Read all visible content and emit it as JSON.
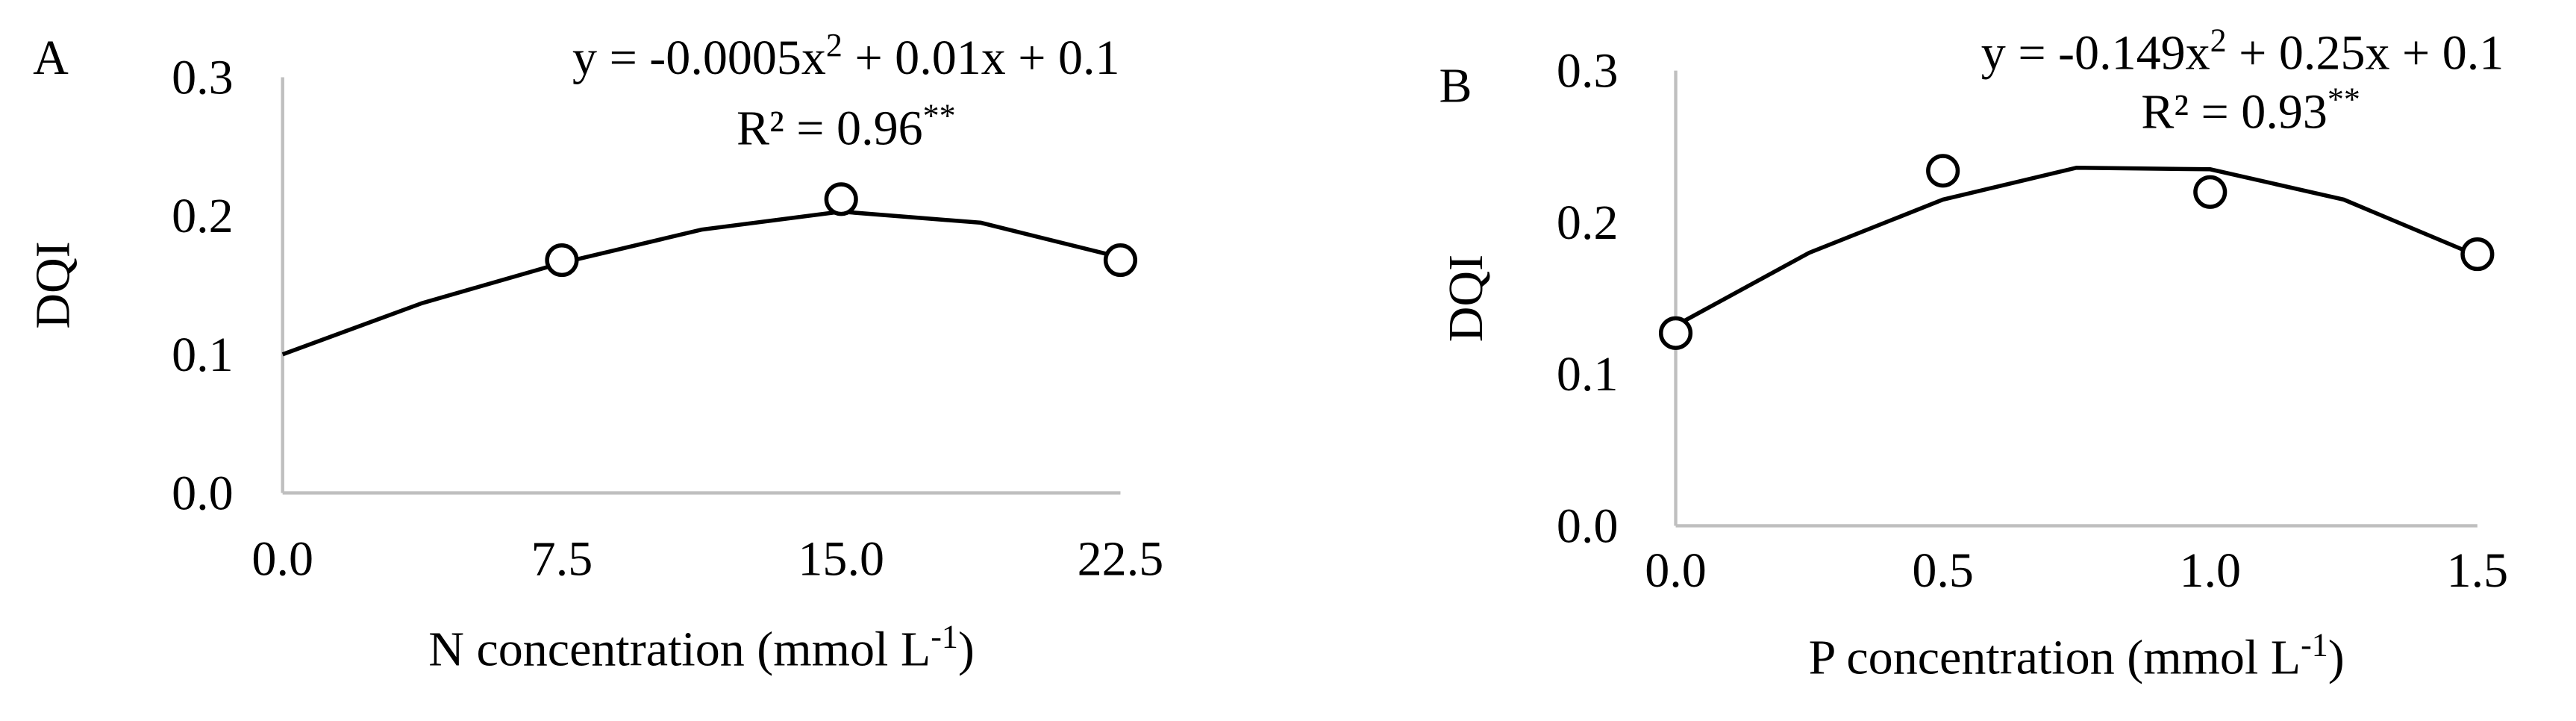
{
  "chart_data": [
    {
      "type": "scatter",
      "panel_label": "A",
      "ylabel": "DQI",
      "xlabel": [
        "N concentration (mmol L",
        "-1",
        ")"
      ],
      "equation": [
        "y = -0.0005x",
        "2",
        " + 0.01x + 0.1"
      ],
      "r2": [
        "R² = 0.96",
        "**"
      ],
      "x": [
        7.5,
        15,
        22.5
      ],
      "values": [
        0.168,
        0.212,
        0.168
      ],
      "color": "#000000",
      "trendline": {
        "x": [
          0,
          3.75,
          7.5,
          11.25,
          15,
          18.75,
          22.5
        ],
        "values": [
          0.1,
          0.137,
          0.166,
          0.19,
          0.203,
          0.195,
          0.17
        ]
      },
      "xlim": [
        0,
        22.5
      ],
      "ylim": [
        0,
        0.3
      ],
      "xticks": [
        {
          "value": 0,
          "label": "0.0"
        },
        7.5,
        {
          "value": 15,
          "label": "15.0"
        },
        22.5
      ],
      "yticks": [
        {
          "value": 0,
          "label": "0.0"
        },
        0.1,
        0.2,
        0.3
      ]
    },
    {
      "type": "scatter",
      "panel_label": "B",
      "ylabel": "DQI",
      "xlabel": [
        "P concentration (mmol L",
        "-1",
        ")"
      ],
      "equation": [
        "y = -0.149x",
        "2",
        " + 0.25x + 0.1"
      ],
      "r2": [
        "R² = 0.93",
        "**"
      ],
      "x": [
        0,
        0.5,
        1,
        1.5
      ],
      "values": [
        0.127,
        0.234,
        0.22,
        0.179
      ],
      "color": "#000000",
      "trendline": {
        "x": [
          0,
          0.25,
          0.5,
          0.75,
          1,
          1.25,
          1.5
        ],
        "values": [
          0.132,
          0.18,
          0.215,
          0.236,
          0.235,
          0.215,
          0.178
        ]
      },
      "xlim": [
        0,
        1.5
      ],
      "ylim": [
        0,
        0.3
      ],
      "xticks": [
        {
          "value": 0,
          "label": "0.0"
        },
        0.5,
        {
          "value": 1,
          "label": "1.0"
        },
        1.5
      ],
      "yticks": [
        {
          "value": 0,
          "label": "0.0"
        },
        0.1,
        0.2,
        0.3
      ]
    }
  ]
}
